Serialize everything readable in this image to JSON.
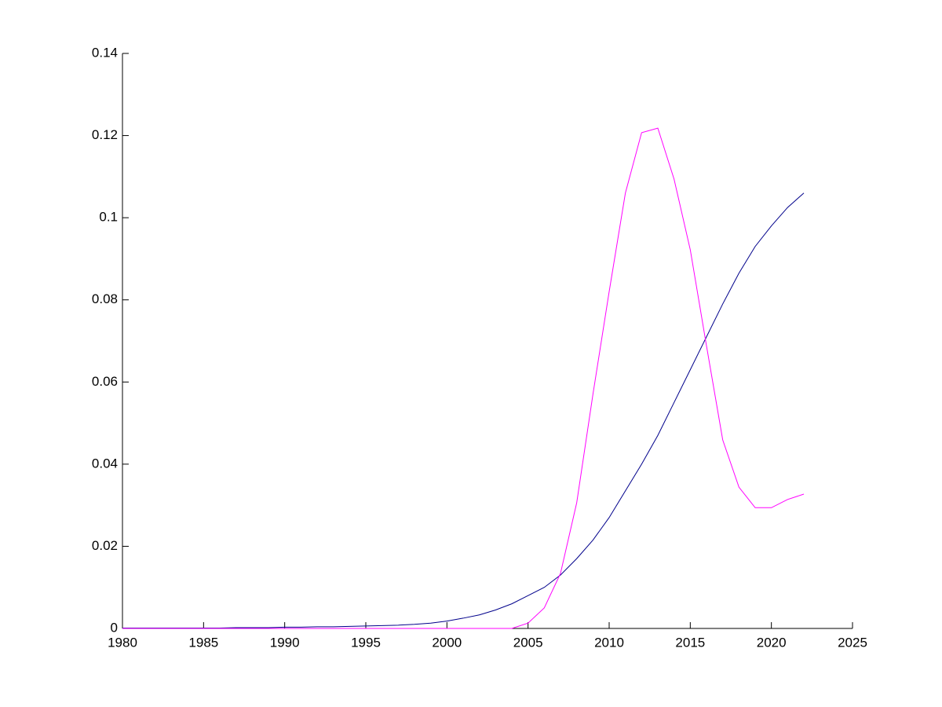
{
  "chart_data": {
    "type": "line",
    "x": [
      1980,
      1981,
      1982,
      1983,
      1984,
      1985,
      1986,
      1987,
      1988,
      1989,
      1990,
      1991,
      1992,
      1993,
      1994,
      1995,
      1996,
      1997,
      1998,
      1999,
      2000,
      2001,
      2002,
      2003,
      2004,
      2005,
      2006,
      2007,
      2008,
      2009,
      2010,
      2011,
      2012,
      2013,
      2014,
      2015,
      2016,
      2017,
      2018,
      2019,
      2020,
      2021,
      2022
    ],
    "series": [
      {
        "color": "#00008b",
        "values": [
          0.0001,
          0.0001,
          0.0001,
          0.0001,
          0.0001,
          0.0001,
          0.0001,
          0.0002,
          0.0002,
          0.0002,
          0.0003,
          0.0003,
          0.0004,
          0.0004,
          0.0005,
          0.0006,
          0.0007,
          0.0008,
          0.001,
          0.0013,
          0.0018,
          0.0025,
          0.0033,
          0.0045,
          0.006,
          0.008,
          0.01,
          0.013,
          0.017,
          0.0215,
          0.027,
          0.0335,
          0.04,
          0.047,
          0.055,
          0.063,
          0.071,
          0.079,
          0.0865,
          0.093,
          0.098,
          0.1025,
          0.106
        ]
      },
      {
        "color": "#ff00ff",
        "values": [
          0,
          0,
          0,
          0,
          0,
          0,
          0,
          0,
          0,
          0,
          0,
          0,
          0,
          0,
          0,
          0,
          0,
          0,
          0,
          0,
          0,
          0,
          0,
          0,
          0,
          0.0013,
          0.005,
          0.0134,
          0.0306,
          0.057,
          0.082,
          0.106,
          0.1207,
          0.1218,
          0.1094,
          0.0922,
          0.0688,
          0.0459,
          0.0344,
          0.0294,
          0.0294,
          0.0314,
          0.0327
        ]
      }
    ],
    "xlim": [
      1980,
      2025
    ],
    "xticks": [
      1980,
      1985,
      1990,
      1995,
      2000,
      2005,
      2010,
      2015,
      2020,
      2025
    ],
    "ylim": [
      0,
      0.14
    ],
    "yticks": [
      0,
      0.02,
      0.04,
      0.06,
      0.08,
      0.1,
      0.12,
      0.14
    ],
    "grid": false
  }
}
